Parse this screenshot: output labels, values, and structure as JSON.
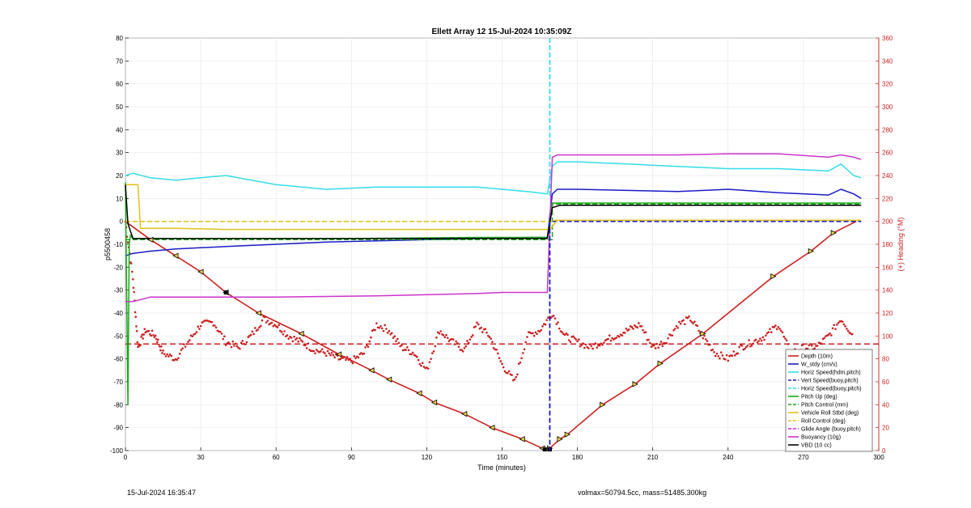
{
  "footer": {
    "date": "15-Jul-2024 16:35:47",
    "stats": "volmax=50794.5cc, mass=51485.300kg"
  },
  "colors": {
    "axis_right": "#cc1f1f",
    "grid": "#e6e6e6"
  },
  "chart_data": {
    "type": "line",
    "title": "Ellett Array 12 15-Jul-2024 10:35:09Z",
    "xlabel": "Time (minutes)",
    "ylabel": "p5500458",
    "y2label": "(+) Heading (°M)",
    "xlim": [
      0,
      300
    ],
    "ylim": [
      -100,
      80
    ],
    "y2lim": [
      0,
      360
    ],
    "xticks": [
      "0",
      "30",
      "60",
      "90",
      "120",
      "150",
      "180",
      "210",
      "240",
      "270",
      "300"
    ],
    "yticks": [
      "-100",
      "-90",
      "-80",
      "-70",
      "-60",
      "-50",
      "-40",
      "-30",
      "-20",
      "-10",
      "0",
      "10",
      "20",
      "30",
      "40",
      "50",
      "60",
      "70",
      "80"
    ],
    "y2ticks": [
      "0",
      "20",
      "40",
      "60",
      "80",
      "100",
      "120",
      "140",
      "160",
      "180",
      "200",
      "220",
      "240",
      "260",
      "280",
      "300",
      "320",
      "340",
      "360"
    ],
    "grid": true,
    "legend_position": "bottom-right",
    "apogee_marker_x": 169,
    "series": [
      {
        "name": "Depth (10m)",
        "color": "#cc1f1f",
        "style": "solid",
        "x": [
          0,
          10,
          20,
          30,
          40,
          53,
          70,
          85,
          98,
          105,
          117,
          123,
          135,
          146,
          158,
          166,
          169,
          173,
          176,
          190,
          203,
          213,
          230,
          258,
          273,
          282,
          291
        ],
        "y": [
          0,
          -8,
          -15,
          -22,
          -31,
          -40,
          -49,
          -58,
          -65,
          -69,
          -75,
          -79,
          -84,
          -90,
          -95,
          -99,
          -99,
          -95,
          -93,
          -80,
          -71,
          -62,
          -49,
          -24,
          -13,
          -5,
          0
        ]
      },
      {
        "name": "W_stdy (cm/s)",
        "color": "#1a1ac8",
        "style": "solid",
        "x": [
          0,
          3,
          10,
          20,
          40,
          60,
          80,
          100,
          120,
          140,
          160,
          168,
          170,
          172,
          180,
          200,
          220,
          240,
          260,
          280,
          285,
          290,
          293
        ],
        "y": [
          -15,
          -14,
          -13,
          -12,
          -11,
          -10,
          -9,
          -8.5,
          -8,
          -7.5,
          -7,
          -7,
          12,
          14,
          14,
          13.5,
          13,
          14,
          12.5,
          11.5,
          14,
          12,
          10
        ]
      },
      {
        "name": "Horiz Speed(hdm,pitch)",
        "color": "#33dde8",
        "style": "solid",
        "x": [
          0,
          3,
          10,
          20,
          30,
          40,
          60,
          80,
          100,
          120,
          140,
          160,
          168,
          170,
          172,
          180,
          200,
          220,
          240,
          260,
          280,
          285,
          290,
          293
        ],
        "y": [
          20,
          21,
          19,
          18,
          19,
          20,
          16,
          14,
          15,
          15,
          15,
          13,
          12,
          24,
          26,
          26,
          25,
          24,
          23,
          23,
          22,
          25,
          20,
          19
        ]
      },
      {
        "name": "Vert Speed(buoy,pitch)",
        "color": "#1a1ac8",
        "style": "dashed",
        "x": [
          170,
          293
        ],
        "y": [
          0,
          0
        ]
      },
      {
        "name": "Horiz Speed(buoy,pitch)",
        "color": "#33dde8",
        "style": "dashed",
        "x": [],
        "y": []
      },
      {
        "name": "Pitch Up (deg)",
        "color": "#1aa81a",
        "style": "solid",
        "x": [
          0,
          1,
          1.5,
          2,
          3,
          40,
          90,
          140,
          168,
          170,
          293
        ],
        "y": [
          17,
          -80,
          -10,
          -6,
          -7.5,
          -7.5,
          -7.5,
          -7,
          -7,
          8,
          8
        ]
      },
      {
        "name": "Pitch Control (mm)",
        "color": "#1aa81a",
        "style": "dashed",
        "x": [
          0,
          170,
          170,
          293
        ],
        "y": [
          -8,
          -8,
          7.5,
          7.5
        ]
      },
      {
        "name": "Vehicle Roll Stbd (deg)",
        "color": "#e0c21a",
        "style": "solid",
        "x": [
          0,
          5,
          6,
          10,
          20,
          40,
          60,
          80,
          100,
          120,
          140,
          160,
          166,
          169,
          172,
          180,
          200,
          220,
          240,
          260,
          280,
          285,
          290,
          293
        ],
        "y": [
          16,
          16,
          -3,
          -3,
          -3,
          -3.5,
          -3.5,
          -3.5,
          -3.5,
          -3.5,
          -3.5,
          -3.5,
          -3.5,
          -3.5,
          0.5,
          0.5,
          0.5,
          0.5,
          0.5,
          0.5,
          0.5,
          0.5,
          0.5,
          0.5
        ]
      },
      {
        "name": "Roll Control (deg)",
        "color": "#e0c21a",
        "style": "dashed",
        "x": [
          0,
          170,
          170,
          293
        ],
        "y": [
          0,
          0,
          0.5,
          0.5
        ]
      },
      {
        "name": "Glide Angle (buoy,pitch)",
        "color": "#e020e0",
        "style": "dashed",
        "x": [],
        "y": []
      },
      {
        "name": "Buoyancy (10g)",
        "color": "#cc33cc",
        "style": "solid",
        "x": [
          0,
          3,
          10,
          40,
          60,
          100,
          140,
          150,
          160,
          168,
          170,
          172,
          180,
          200,
          220,
          240,
          260,
          280,
          285,
          290,
          293
        ],
        "y": [
          -35,
          -35,
          -33,
          -33,
          -33,
          -32.5,
          -31.5,
          -31,
          -31,
          -31,
          28,
          29,
          29,
          29,
          29,
          29.5,
          29.5,
          28,
          29,
          28,
          27
        ]
      },
      {
        "name": "VBD (10 cc)",
        "color": "#000000",
        "style": "solid",
        "x": [
          0,
          1,
          3,
          10,
          100,
          168,
          170,
          173,
          293
        ],
        "y": [
          16,
          -1,
          -7.5,
          -7.5,
          -7.5,
          -7.5,
          6,
          7,
          7
        ]
      }
    ],
    "heading_series": {
      "name": "Heading",
      "color": "#cc1f1f",
      "mean": 93,
      "x": [
        0,
        3,
        5,
        8,
        12,
        15,
        20,
        25,
        30,
        35,
        40,
        45,
        50,
        55,
        60,
        65,
        70,
        75,
        80,
        85,
        90,
        95,
        100,
        105,
        110,
        115,
        120,
        125,
        130,
        135,
        140,
        145,
        150,
        155,
        160,
        165,
        170,
        175,
        180,
        185,
        190,
        195,
        200,
        205,
        210,
        215,
        220,
        225,
        230,
        235,
        240,
        245,
        250,
        255,
        260,
        265,
        270,
        275,
        280,
        285,
        290
      ],
      "y": [
        200,
        150,
        90,
        105,
        100,
        85,
        80,
        95,
        110,
        112,
        95,
        90,
        100,
        115,
        110,
        100,
        95,
        88,
        85,
        80,
        78,
        85,
        110,
        105,
        90,
        85,
        70,
        105,
        95,
        88,
        110,
        100,
        75,
        60,
        100,
        105,
        120,
        100,
        95,
        90,
        95,
        100,
        105,
        110,
        90,
        95,
        110,
        115,
        100,
        85,
        80,
        90,
        95,
        100,
        110,
        85,
        90,
        90,
        100,
        115,
        100
      ]
    },
    "markers_note": "Depth line carries triangular direction markers"
  }
}
